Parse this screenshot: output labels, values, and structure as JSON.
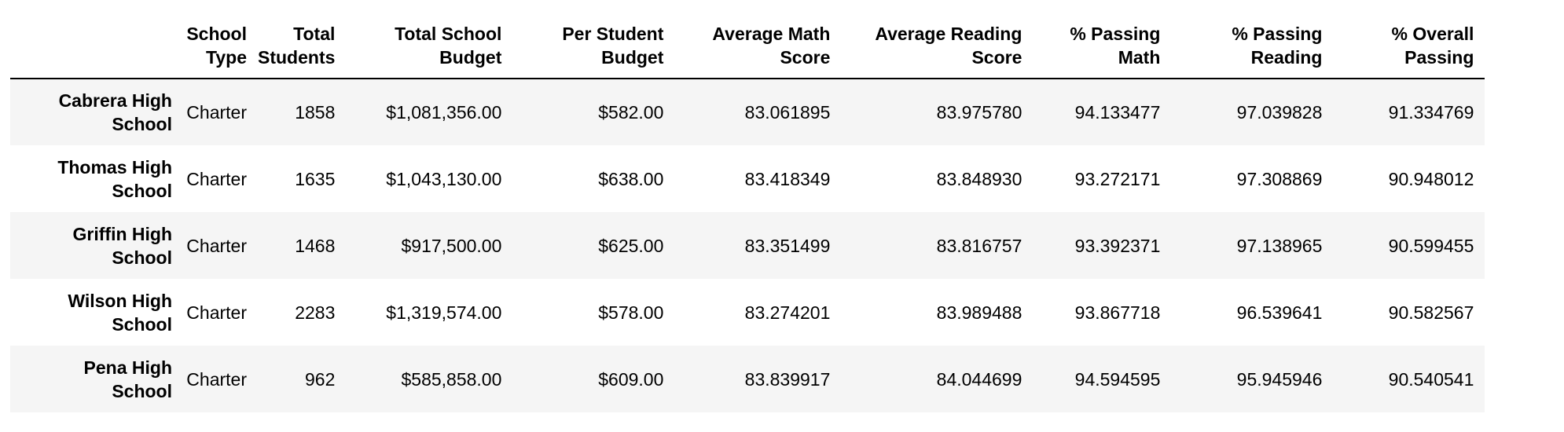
{
  "table": {
    "columns": [
      [
        "",
        ""
      ],
      [
        "School",
        "Type"
      ],
      [
        "Total",
        "Students"
      ],
      [
        "Total School",
        "Budget"
      ],
      [
        "Per Student",
        "Budget"
      ],
      [
        "Average Math",
        "Score"
      ],
      [
        "Average Reading",
        "Score"
      ],
      [
        "% Passing",
        "Math"
      ],
      [
        "% Passing",
        "Reading"
      ],
      [
        "% Overall",
        "Passing"
      ]
    ],
    "rows": [
      {
        "index": [
          "Cabrera High",
          "School"
        ],
        "cells": [
          "Charter",
          "1858",
          "$1,081,356.00",
          "$582.00",
          "83.061895",
          "83.975780",
          "94.133477",
          "97.039828",
          "91.334769"
        ]
      },
      {
        "index": [
          "Thomas High",
          "School"
        ],
        "cells": [
          "Charter",
          "1635",
          "$1,043,130.00",
          "$638.00",
          "83.418349",
          "83.848930",
          "93.272171",
          "97.308869",
          "90.948012"
        ]
      },
      {
        "index": [
          "Griffin High",
          "School"
        ],
        "cells": [
          "Charter",
          "1468",
          "$917,500.00",
          "$625.00",
          "83.351499",
          "83.816757",
          "93.392371",
          "97.138965",
          "90.599455"
        ]
      },
      {
        "index": [
          "Wilson High",
          "School"
        ],
        "cells": [
          "Charter",
          "2283",
          "$1,319,574.00",
          "$578.00",
          "83.274201",
          "83.989488",
          "93.867718",
          "96.539641",
          "90.582567"
        ]
      },
      {
        "index": [
          "Pena High",
          "School"
        ],
        "cells": [
          "Charter",
          "962",
          "$585,858.00",
          "$609.00",
          "83.839917",
          "84.044699",
          "94.594595",
          "95.945946",
          "90.540541"
        ]
      }
    ]
  }
}
